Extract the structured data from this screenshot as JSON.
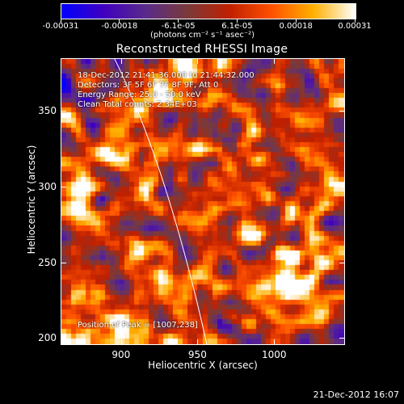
{
  "colorbar": {
    "tick_labels": [
      "-0.00031",
      "-0.00018",
      "-6.1e-05",
      "6.1e-05",
      "0.00018",
      "0.00031"
    ],
    "units_label": "(photons cm⁻² s⁻¹ asec⁻²)",
    "colors": [
      "#0000ff",
      "#4000c0",
      "#5a2a8a",
      "#7a3a3a",
      "#c02000",
      "#ff5000",
      "#ffb000",
      "#ffffff"
    ]
  },
  "title": "Reconstructed RHESSI Image",
  "info_lines": [
    "18-Dec-2012 21:41:36.000 to 21:44:32.000",
    "Detectors: 3F 5F 6F 7F 8F 9F, Att 0",
    "Energy Range: 25.0 - 50.0 keV",
    "Clean   Total counts: 2.34E+03"
  ],
  "peak_label": "Position of Peak = [1007,238]",
  "x_axis": {
    "label": "Heliocentric X (arcsec)",
    "range": [
      861,
      1046
    ],
    "ticks": [
      900,
      950,
      1000
    ]
  },
  "y_axis": {
    "label": "Heliocentric Y (arcsec)",
    "range": [
      196,
      384
    ],
    "ticks": [
      200,
      250,
      300,
      350
    ]
  },
  "timestamp": "21-Dec-2012 16:07"
}
